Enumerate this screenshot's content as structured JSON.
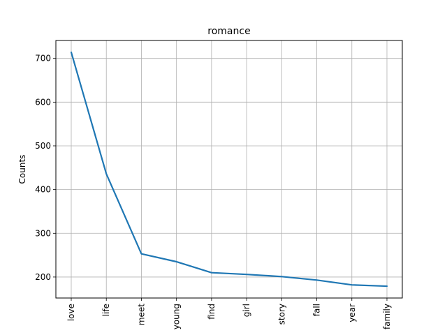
{
  "chart_data": {
    "type": "line",
    "title": "romance",
    "xlabel": "",
    "ylabel": "Counts",
    "categories": [
      "love",
      "life",
      "meet",
      "young",
      "find",
      "girl",
      "story",
      "fall",
      "year",
      "family"
    ],
    "series": [
      {
        "values": [
          714,
          436,
          253,
          235,
          210,
          206,
          201,
          193,
          182,
          179
        ]
      }
    ],
    "yticks": [
      200,
      300,
      400,
      500,
      600,
      700
    ],
    "ylim": [
      152,
      741
    ],
    "grid": true,
    "colors": {
      "line": "#1f77b4",
      "grid": "#b0b0b0"
    }
  }
}
